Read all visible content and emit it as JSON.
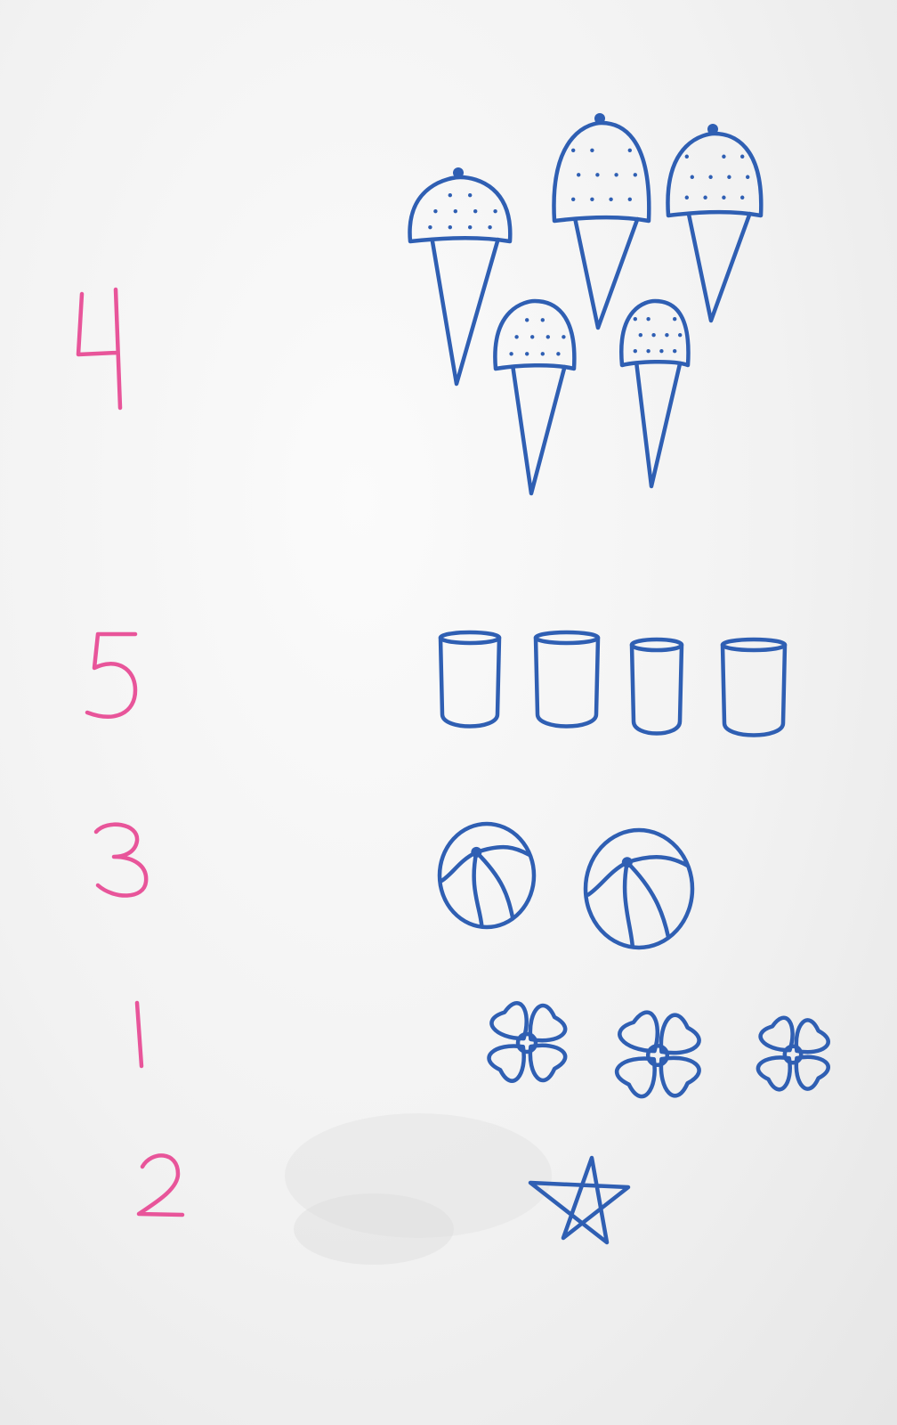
{
  "colors": {
    "number_ink": "#e8559a",
    "drawing_ink": "#2f5fb3"
  },
  "rows": [
    {
      "numeral": "4",
      "drawing": "ice-cream-cone",
      "count": 5
    },
    {
      "numeral": "5",
      "drawing": "cup",
      "count": 4
    },
    {
      "numeral": "3",
      "drawing": "beach-ball",
      "count": 2
    },
    {
      "numeral": "1",
      "drawing": "flower",
      "count": 3
    },
    {
      "numeral": "2",
      "drawing": "star",
      "count": 1
    }
  ]
}
